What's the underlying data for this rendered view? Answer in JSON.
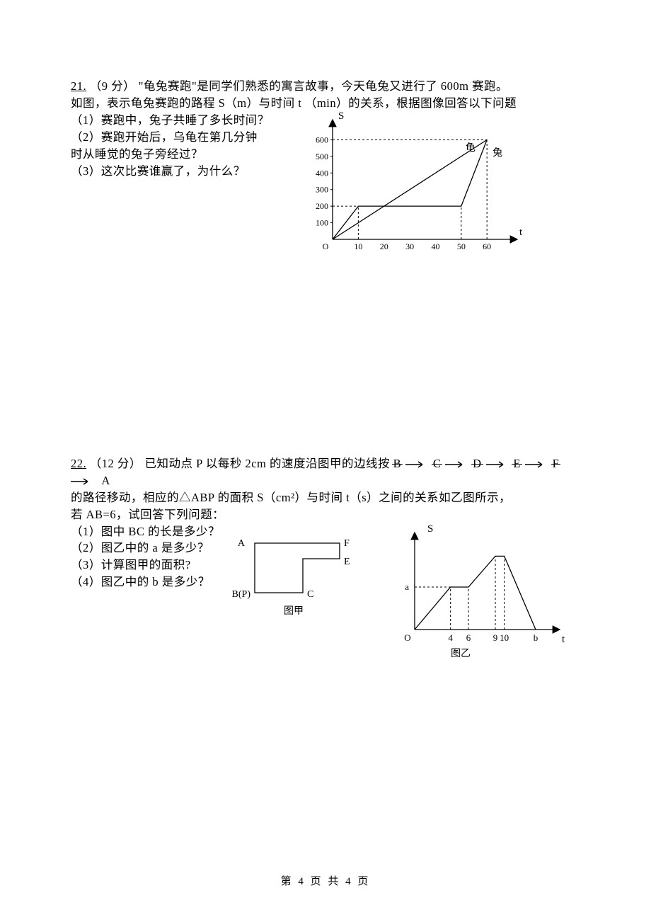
{
  "q21": {
    "number": "21.",
    "points": "（9 分）",
    "intro1": "\"龟兔赛跑\"是同学们熟悉的寓言故事，今天龟兔又进行了 600m 赛跑。",
    "intro2": "如图，表示龟兔赛跑的路程 S（m）与时间 t （min）的关系，根据图像回答以下问题",
    "sub1": "（1）赛跑中，兔子共睡了多长时间？",
    "sub2a": "（2）赛跑开始后，乌龟在第几分钟",
    "sub2b": "时从睡觉的兔子旁经过？",
    "sub3": "（3）这次比赛谁赢了，为什么？",
    "chart": {
      "type": "line",
      "y_label": "S",
      "x_label": "t",
      "origin_label": "O",
      "y_ticks": [
        100,
        200,
        300,
        400,
        500,
        600
      ],
      "y_limits": [
        0,
        640
      ],
      "x_ticks": [
        10,
        20,
        30,
        40,
        50,
        60
      ],
      "x_limits": [
        0,
        66
      ],
      "series_turtle": {
        "label": "龟",
        "points": [
          [
            0,
            0
          ],
          [
            60,
            600
          ]
        ]
      },
      "series_rabbit": {
        "label": "兔",
        "points": [
          [
            0,
            0
          ],
          [
            10,
            200
          ],
          [
            50,
            200
          ],
          [
            60,
            600
          ]
        ]
      },
      "dashed_segments": [
        [
          [
            0,
            200
          ],
          [
            10,
            200
          ]
        ],
        [
          [
            10,
            0
          ],
          [
            10,
            200
          ]
        ],
        [
          [
            0,
            600
          ],
          [
            60,
            600
          ]
        ],
        [
          [
            50,
            0
          ],
          [
            50,
            200
          ]
        ],
        [
          [
            60,
            0
          ],
          [
            60,
            600
          ]
        ]
      ],
      "line_color": "#000000",
      "dash_color": "#000000",
      "text_color": "#000000",
      "axis_width": 1.3,
      "line_width": 1.3,
      "dash_pattern": "3,3",
      "tick_font_size": 12,
      "label_font_size": 15
    }
  },
  "q22": {
    "number": "22.",
    "points": "（12 分）",
    "intro1a": "已知动点 P 以每秒 2cm 的速度沿图甲的边线按 ",
    "path_sequence": [
      "B",
      "C",
      "D",
      "E",
      "F",
      "A"
    ],
    "intro2": "的路径移动，相应的△ABP 的面积 S（cm²）与时间 t（s）之间的关系如乙图所示，",
    "intro3": "若 AB=6，试回答下列问题：",
    "sub1": "（1）图中 BC 的长是多少？",
    "sub2": "（2）图乙中的 a 是多少？",
    "sub3": "（3）计算图甲的面积?",
    "sub4": "（4）图乙中的 b 是多少？",
    "diagram_jia": {
      "title": "图甲",
      "labels": {
        "A": "A",
        "F": "F",
        "E": "E",
        "C": "C",
        "BP": "B(P)"
      },
      "outline_color": "#000000",
      "line_width": 1.3,
      "title_font_size": 14,
      "label_font_size": 14,
      "points": {
        "A": [
          0,
          0
        ],
        "F": [
          120,
          0
        ],
        "E": [
          120,
          22
        ],
        "D": [
          68,
          22
        ],
        "C": [
          68,
          70
        ],
        "B": [
          0,
          70
        ]
      }
    },
    "diagram_yi": {
      "title": "图乙",
      "type": "line",
      "y_label": "S",
      "x_label": "t",
      "origin_label": "O",
      "a_label": "a",
      "x_ticks_labeled": [
        4,
        6,
        9,
        10
      ],
      "b_label": "b",
      "series": [
        [
          0,
          0
        ],
        [
          4,
          55
        ],
        [
          6,
          55
        ],
        [
          9,
          95
        ],
        [
          10,
          95
        ],
        [
          13.5,
          0
        ]
      ],
      "dashed_segments": [
        [
          [
            0,
            55
          ],
          [
            4,
            55
          ]
        ],
        [
          [
            4,
            0
          ],
          [
            4,
            55
          ]
        ],
        [
          [
            6,
            0
          ],
          [
            6,
            55
          ]
        ],
        [
          [
            9,
            0
          ],
          [
            9,
            95
          ]
        ],
        [
          [
            10,
            0
          ],
          [
            10,
            95
          ]
        ]
      ],
      "line_color": "#000000",
      "axis_width": 1.3,
      "line_width": 1.3,
      "dash_pattern": "3,3",
      "tick_font_size": 13,
      "label_font_size": 15,
      "title_font_size": 14
    }
  },
  "footer": "第 4 页 共 4 页"
}
